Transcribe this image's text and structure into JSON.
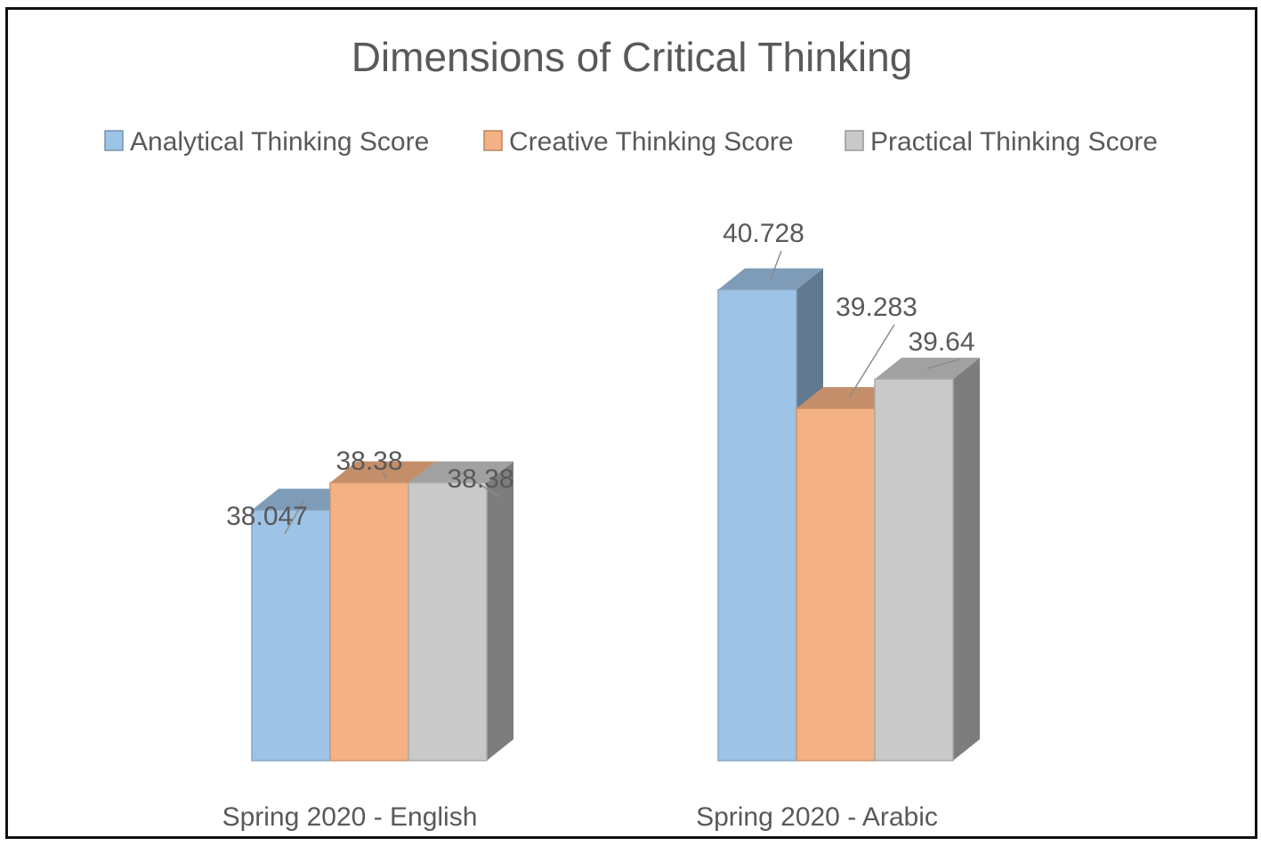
{
  "chart_data": {
    "type": "bar",
    "title": "Dimensions of Critical Thinking",
    "categories": [
      "Spring 2020 - English",
      "Spring 2020 - Arabic"
    ],
    "series": [
      {
        "name": "Analytical Thinking Score",
        "values": [
          38.047,
          40.728
        ],
        "labels": [
          "38.047",
          "40.728"
        ],
        "color": "#9dc3e6"
      },
      {
        "name": "Creative Thinking Score",
        "values": [
          38.38,
          39.283
        ],
        "labels": [
          "38.38",
          "39.283"
        ],
        "color": "#f4b183"
      },
      {
        "name": "Practical Thinking Score",
        "values": [
          38.38,
          39.64
        ],
        "labels": [
          "38.38",
          "39.64"
        ],
        "color": "#c9c9c9"
      }
    ],
    "style": "3d-column",
    "legend_position": "top",
    "grid": false,
    "ylim": [
      35,
      41.6
    ]
  }
}
